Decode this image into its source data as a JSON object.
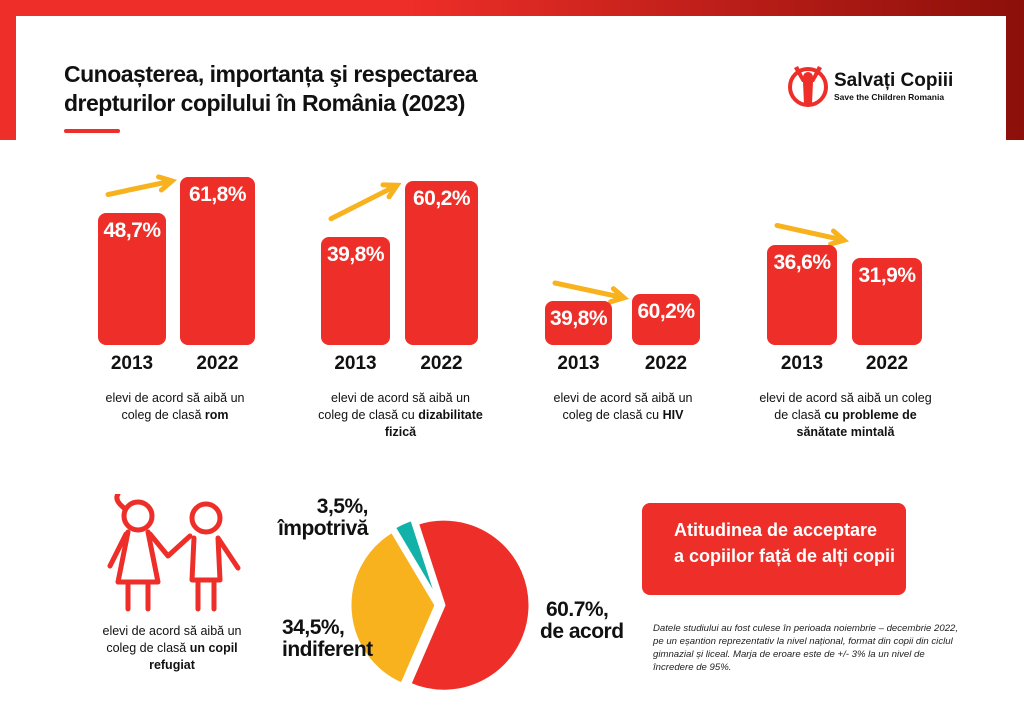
{
  "header": {
    "title_line1": "Cunoașterea, importanța şi respectarea",
    "title_line2": "drepturilor copilului în România (2023)"
  },
  "logo": {
    "name": "Salvați Copiii",
    "subtitle": "Save the Children Romania"
  },
  "colors": {
    "red": "#ee2e28",
    "orange": "#f7b21e",
    "teal": "#13b2a9"
  },
  "chart_data": [
    {
      "type": "bar",
      "categories": [
        "2013",
        "2022"
      ],
      "groups": [
        {
          "values": [
            48.7,
            61.8
          ],
          "labels": [
            "48,7%",
            "61,8%"
          ],
          "caption_pre": "elevi de acord să aibă un coleg de clasă",
          "caption_bold": "rom",
          "trend": "up"
        },
        {
          "values": [
            39.8,
            60.2
          ],
          "labels": [
            "39,8%",
            "60,2%"
          ],
          "caption_pre": "elevi de acord să aibă un coleg de clasă cu",
          "caption_bold": "dizabilitate fizică",
          "trend": "up"
        },
        {
          "values": [
            39.8,
            60.2
          ],
          "labels": [
            "39,8%",
            "60,2%"
          ],
          "caption_pre": "elevi de acord să aibă un coleg de clasă cu",
          "caption_bold": "HIV",
          "trend": "up"
        },
        {
          "values": [
            36.6,
            31.9
          ],
          "labels": [
            "36,6%",
            "31,9%"
          ],
          "caption_pre": "elevi de acord să aibă un coleg de clasă",
          "caption_bold": "cu probleme de sănătate mintală",
          "trend": "down"
        }
      ]
    },
    {
      "type": "pie",
      "slices": [
        {
          "value": 60.7,
          "label": "60.7%,",
          "name": "de acord",
          "color": "#ee2e28"
        },
        {
          "value": 34.5,
          "label": "34,5%,",
          "name": "indiferent",
          "color": "#f7b21e"
        },
        {
          "value": 3.5,
          "label": "3,5%,",
          "name": "împotrivă",
          "color": "#13b2a9"
        }
      ],
      "caption_pre": "elevi de acord să aibă un coleg de clasă",
      "caption_bold": "un copil refugiat"
    }
  ],
  "box": {
    "line1": "Atitudinea de acceptare",
    "line2": "a copiilor față de alți copii"
  },
  "note": "Datele studiului au fost culese în perioada noiembrie – decembrie 2022, pe un eșantion reprezentativ la nivel național, format din copii din ciclul gimnazial și liceal. Marja de eroare este de +/- 3% la un nivel de încredere de 95%."
}
